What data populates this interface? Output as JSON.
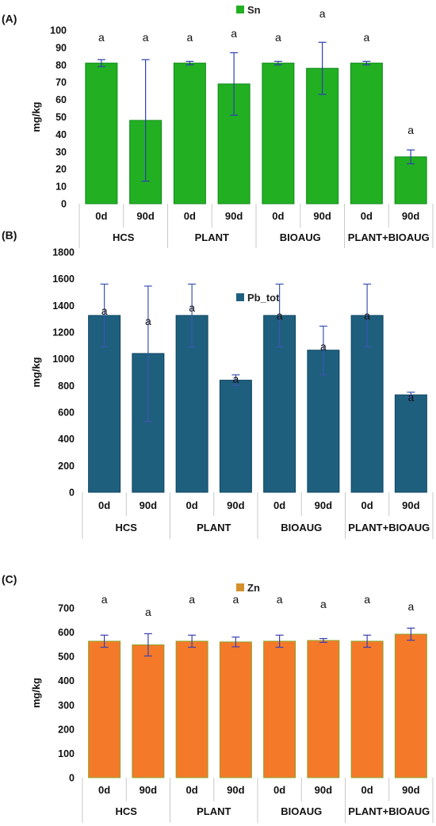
{
  "chart_data": [
    {
      "type": "bar",
      "panel_label": "(A)",
      "series_name": "Sn",
      "ylabel": "mg/kg",
      "ylim": [
        0,
        100
      ],
      "yticks": [
        0,
        10,
        20,
        30,
        40,
        50,
        60,
        70,
        80,
        90,
        100
      ],
      "time_labels": [
        "0d",
        "90d",
        "0d",
        "90d",
        "0d",
        "90d",
        "0d",
        "90d"
      ],
      "groups": [
        "HCS",
        "PLANT",
        "BIOAUG",
        "PLANT+BIOAUG"
      ],
      "values": [
        81,
        48,
        81,
        69,
        81,
        78,
        81,
        27
      ],
      "error_low": [
        79,
        13,
        80,
        51,
        80,
        63,
        80,
        23
      ],
      "error_high": [
        83,
        83,
        82,
        87,
        82,
        93,
        82,
        31
      ],
      "significance": [
        "a",
        "a",
        "a",
        "a",
        "a",
        "a",
        "a",
        "a"
      ],
      "colors": {
        "bar": "#22b022",
        "bar_edge": "#0f8a1a",
        "error": "#2e3fae"
      }
    },
    {
      "type": "bar",
      "panel_label": "(B)",
      "series_name": "Pb_tot",
      "ylabel": "mg/kg",
      "ylim": [
        0,
        1800
      ],
      "yticks": [
        0,
        200,
        400,
        600,
        800,
        1000,
        1200,
        1400,
        1600,
        1800
      ],
      "time_labels": [
        "0d",
        "90d",
        "0d",
        "90d",
        "0d",
        "90d",
        "0d",
        "90d"
      ],
      "groups": [
        "HCS",
        "PLANT",
        "BIOAUG",
        "PLANT+BIOAUG"
      ],
      "values": [
        1325,
        1040,
        1325,
        840,
        1325,
        1065,
        1325,
        730
      ],
      "error_low": [
        1090,
        530,
        1090,
        800,
        1090,
        880,
        1090,
        710
      ],
      "error_high": [
        1560,
        1545,
        1560,
        880,
        1560,
        1245,
        1560,
        750
      ],
      "significance": [
        "a",
        "a",
        "a",
        "a",
        "a",
        "a",
        "a",
        "a"
      ],
      "colors": {
        "bar": "#1f5f7e",
        "bar_edge": "#0f4560",
        "error": "#3a56b0"
      }
    },
    {
      "type": "bar",
      "panel_label": "(C)",
      "series_name": "Zn",
      "ylabel": "mg/kg",
      "ylim": [
        0,
        700
      ],
      "yticks": [
        0,
        100,
        200,
        300,
        400,
        500,
        600,
        700
      ],
      "time_labels": [
        "0d",
        "90d",
        "0d",
        "90d",
        "0d",
        "90d",
        "0d",
        "90d"
      ],
      "groups": [
        "HCS",
        "PLANT",
        "BIOAUG",
        "PLANT+BIOAUG"
      ],
      "values": [
        563,
        548,
        563,
        560,
        563,
        566,
        563,
        592
      ],
      "error_low": [
        538,
        502,
        538,
        540,
        538,
        558,
        538,
        567
      ],
      "error_high": [
        588,
        594,
        588,
        580,
        588,
        574,
        588,
        617
      ],
      "significance": [
        "a",
        "a",
        "a",
        "a",
        "a",
        "a",
        "a",
        "a"
      ],
      "colors": {
        "bar": "#f47a2a",
        "bar_edge": "#8aa52b",
        "error": "#3a3fb0",
        "legend": "#d4902a"
      }
    }
  ]
}
